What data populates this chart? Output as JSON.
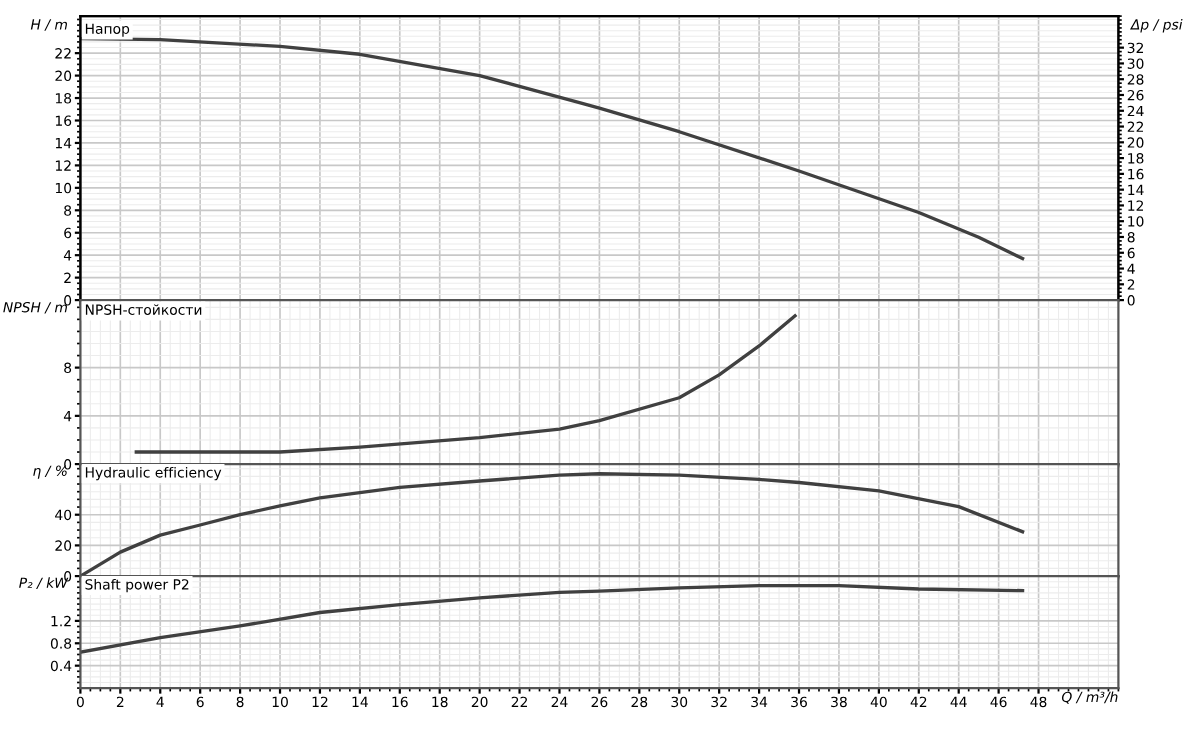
{
  "chart_data": [
    {
      "type": "line",
      "title": "Напор",
      "ylabel": "H / m",
      "y2label": "Δp / psi",
      "xlim": [
        0,
        52
      ],
      "ylim": [
        0,
        25.3
      ],
      "yticks": [
        0,
        2,
        4,
        6,
        8,
        10,
        12,
        14,
        16,
        18,
        20,
        22
      ],
      "y2lim": [
        0,
        36
      ],
      "y2ticks": [
        0,
        2,
        4,
        6,
        8,
        10,
        12,
        14,
        16,
        18,
        20,
        22,
        24,
        26,
        28,
        30,
        32
      ],
      "grid": true,
      "tick_labels": "y",
      "series": [
        {
          "color": "#404040",
          "x": [
            0,
            4,
            10,
            14,
            20,
            25,
            26,
            30,
            36,
            42,
            45,
            47.2
          ],
          "values": [
            23.3,
            23.2,
            22.6,
            21.9,
            20.0,
            17.6,
            17.1,
            15.0,
            11.5,
            7.8,
            5.6,
            3.7
          ]
        }
      ]
    },
    {
      "type": "line",
      "title": "NPSH-стойкости",
      "ylabel": "NPSH / m",
      "xlim": [
        0,
        52
      ],
      "ylim": [
        0,
        13.6
      ],
      "yticks": [
        0,
        4,
        8
      ],
      "grid": true,
      "tick_labels": "y",
      "series": [
        {
          "color": "#404040",
          "x": [
            2.8,
            10,
            14,
            20,
            24,
            26,
            30,
            32,
            34,
            35.8
          ],
          "values": [
            1.0,
            1.0,
            1.4,
            2.2,
            2.9,
            3.6,
            5.5,
            7.4,
            9.8,
            12.3
          ]
        }
      ]
    },
    {
      "type": "line",
      "title": "Hydraulic efficiency",
      "ylabel": "η / %",
      "xlim": [
        0,
        52
      ],
      "ylim": [
        0,
        73
      ],
      "yticks": [
        0,
        20,
        40
      ],
      "grid": true,
      "tick_labels": "y",
      "series": [
        {
          "color": "#404040",
          "x": [
            0,
            2,
            4,
            6,
            8,
            10,
            12,
            16,
            20,
            24,
            26,
            30,
            34,
            36,
            40,
            44,
            47.2
          ],
          "values": [
            0,
            15.6,
            26.7,
            33.3,
            40,
            45.8,
            51,
            57.8,
            62,
            65.8,
            66.7,
            65.8,
            63,
            61,
            55.6,
            45.3,
            28.9
          ]
        }
      ]
    },
    {
      "type": "line",
      "title": "Shaft power P2",
      "ylabel": "P₂ / kW",
      "xlabel": "Q / m³/h",
      "xlim": [
        0,
        52
      ],
      "xticks": [
        0,
        2,
        4,
        6,
        8,
        10,
        12,
        14,
        16,
        18,
        20,
        22,
        24,
        26,
        28,
        30,
        32,
        34,
        36,
        38,
        40,
        42,
        44,
        46,
        48
      ],
      "ylim": [
        0,
        2.0
      ],
      "yticks": [
        0.4,
        0.8,
        1.2
      ],
      "grid": true,
      "series": [
        {
          "color": "#404040",
          "x": [
            0,
            4,
            8,
            12,
            16,
            20,
            24,
            26,
            30,
            34,
            38,
            42,
            47.2
          ],
          "values": [
            0.64,
            0.9,
            1.11,
            1.35,
            1.49,
            1.61,
            1.71,
            1.73,
            1.79,
            1.83,
            1.83,
            1.77,
            1.74
          ]
        }
      ]
    }
  ]
}
